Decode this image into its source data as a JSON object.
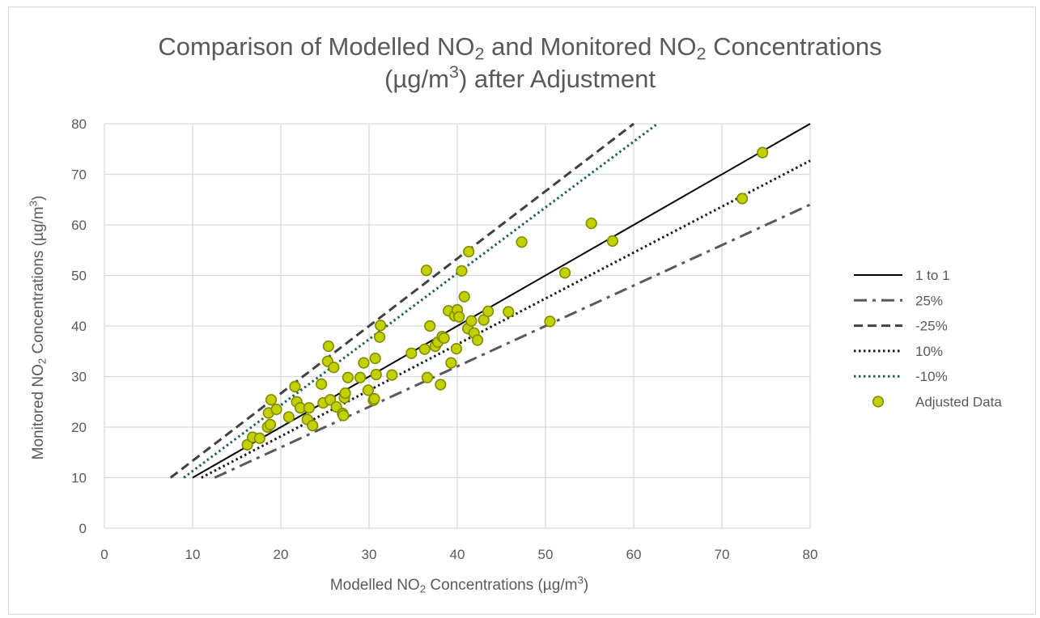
{
  "chart_data": {
    "type": "scatter",
    "title": {
      "line1_prefix": "Comparison of Modelled NO",
      "line1_sub1": "2",
      "line1_mid": " and Monitored NO",
      "line1_sub2": "2",
      "line1_suffix": " Concentrations",
      "line2_prefix": "(µg/m",
      "line2_sup": "3",
      "line2_suffix": ") after Adjustment"
    },
    "xlabel": {
      "prefix": "Modelled NO",
      "sub": "2",
      "mid": " Concentrations (µg/m",
      "sup": "3",
      "suffix": ")"
    },
    "ylabel": {
      "prefix": "Monitored NO",
      "sub": "2",
      "mid": " Concentrations (µg/m",
      "sup": "3",
      "suffix": ")"
    },
    "xlim": [
      0,
      80
    ],
    "ylim": [
      0,
      80
    ],
    "xticks": [
      0,
      10,
      20,
      30,
      40,
      50,
      60,
      70,
      80
    ],
    "yticks": [
      0,
      10,
      20,
      30,
      40,
      50,
      60,
      70,
      80
    ],
    "grid": true,
    "legend_position": "right",
    "lines": [
      {
        "name": "1 to 1",
        "x": [
          10,
          80
        ],
        "y": [
          10,
          80
        ],
        "style": "solid",
        "color": "#000000"
      },
      {
        "name": "25%",
        "x": [
          12.5,
          80
        ],
        "y": [
          10,
          64
        ],
        "style": "dashdot",
        "color": "#595959"
      },
      {
        "name": "-25%",
        "x": [
          7.5,
          60
        ],
        "y": [
          10,
          80
        ],
        "style": "dashed",
        "color": "#404040"
      },
      {
        "name": "10%",
        "x": [
          11,
          80
        ],
        "y": [
          10,
          72.7
        ],
        "style": "dotted",
        "color": "#1a1a1a"
      },
      {
        "name": "-10%",
        "x": [
          9,
          62.7
        ],
        "y": [
          10,
          80
        ],
        "style": "dotted",
        "color": "#1e5f5f"
      }
    ],
    "scatter": {
      "name": "Adjusted Data",
      "color": "#c3d100",
      "edge_color": "#7f8c00",
      "points": [
        [
          16.2,
          16.5
        ],
        [
          16.8,
          18.0
        ],
        [
          17.6,
          17.8
        ],
        [
          18.5,
          20.0
        ],
        [
          18.8,
          20.5
        ],
        [
          18.6,
          22.8
        ],
        [
          18.9,
          25.4
        ],
        [
          19.5,
          23.5
        ],
        [
          20.9,
          22.0
        ],
        [
          21.6,
          28.0
        ],
        [
          21.8,
          25.0
        ],
        [
          22.2,
          23.8
        ],
        [
          23.0,
          21.5
        ],
        [
          23.2,
          23.8
        ],
        [
          23.6,
          20.3
        ],
        [
          24.6,
          28.5
        ],
        [
          24.8,
          24.8
        ],
        [
          25.3,
          33.0
        ],
        [
          25.4,
          36.0
        ],
        [
          25.6,
          25.4
        ],
        [
          26.0,
          31.8
        ],
        [
          26.3,
          24.0
        ],
        [
          27.0,
          22.7
        ],
        [
          27.1,
          22.3
        ],
        [
          27.2,
          25.8
        ],
        [
          27.3,
          26.7
        ],
        [
          27.6,
          29.8
        ],
        [
          29.0,
          29.8
        ],
        [
          29.4,
          32.7
        ],
        [
          29.9,
          27.3
        ],
        [
          30.5,
          25.3
        ],
        [
          30.6,
          25.6
        ],
        [
          30.7,
          33.6
        ],
        [
          30.8,
          30.4
        ],
        [
          31.2,
          37.8
        ],
        [
          31.3,
          40.1
        ],
        [
          32.6,
          30.3
        ],
        [
          34.8,
          34.6
        ],
        [
          36.3,
          35.4
        ],
        [
          36.5,
          51.0
        ],
        [
          36.6,
          29.8
        ],
        [
          36.9,
          40.0
        ],
        [
          37.5,
          36.0
        ],
        [
          37.8,
          36.8
        ],
        [
          38.1,
          28.4
        ],
        [
          38.3,
          37.9
        ],
        [
          38.5,
          37.6
        ],
        [
          39.0,
          43.0
        ],
        [
          39.3,
          32.7
        ],
        [
          39.7,
          42.0
        ],
        [
          39.9,
          35.5
        ],
        [
          40.0,
          43.2
        ],
        [
          40.2,
          41.8
        ],
        [
          40.5,
          50.9
        ],
        [
          40.8,
          45.8
        ],
        [
          41.2,
          39.5
        ],
        [
          41.3,
          54.7
        ],
        [
          41.6,
          41.0
        ],
        [
          41.9,
          38.6
        ],
        [
          42.3,
          37.2
        ],
        [
          43.0,
          41.2
        ],
        [
          43.5,
          42.9
        ],
        [
          45.8,
          42.8
        ],
        [
          47.3,
          56.6
        ],
        [
          50.5,
          40.9
        ],
        [
          52.2,
          50.5
        ],
        [
          55.2,
          60.3
        ],
        [
          57.6,
          56.8
        ],
        [
          72.3,
          65.2
        ],
        [
          74.6,
          74.3
        ]
      ]
    }
  }
}
